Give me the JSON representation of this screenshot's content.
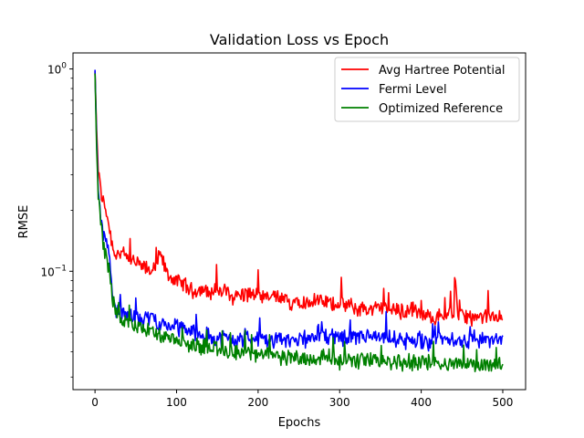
{
  "chart_data": {
    "type": "line",
    "title": "Validation Loss vs Epoch",
    "xlabel": "Epochs",
    "ylabel": "RMSE",
    "y_scale": "log",
    "xlim": [
      -27,
      528
    ],
    "ylim": [
      0.026,
      1.2
    ],
    "grid": false,
    "legend_position": "upper-right",
    "x_ticks": [
      0,
      100,
      200,
      300,
      400,
      500
    ],
    "x_tick_labels": [
      "0",
      "100",
      "200",
      "300",
      "400",
      "500"
    ],
    "y_major_ticks": [
      0.1,
      1.0
    ],
    "y_major_labels": [
      "10",
      "10"
    ],
    "y_major_exponents": [
      "−1",
      "0"
    ],
    "y_minor_ticks": [
      0.03,
      0.04,
      0.05,
      0.06,
      0.07,
      0.08,
      0.09,
      0.2,
      0.3,
      0.4,
      0.5,
      0.6,
      0.7,
      0.8,
      0.9
    ],
    "series": [
      {
        "name": "Avg Hartree Potential",
        "color": "#ff0000",
        "x": [
          0,
          2,
          4,
          7,
          10,
          14,
          18,
          22,
          26,
          30,
          35,
          40,
          50,
          60,
          70,
          80,
          90,
          100,
          110,
          120,
          130,
          140,
          150,
          160,
          170,
          180,
          190,
          200,
          210,
          220,
          230,
          240,
          250,
          260,
          270,
          280,
          290,
          300,
          310,
          320,
          330,
          340,
          350,
          360,
          370,
          380,
          390,
          400,
          410,
          420,
          430,
          440,
          441,
          445,
          450,
          460,
          470,
          480,
          490,
          500
        ],
        "y": [
          0.97,
          0.5,
          0.32,
          0.25,
          0.22,
          0.2,
          0.16,
          0.13,
          0.12,
          0.125,
          0.12,
          0.115,
          0.11,
          0.105,
          0.1,
          0.12,
          0.095,
          0.09,
          0.085,
          0.08,
          0.082,
          0.078,
          0.08,
          0.08,
          0.075,
          0.077,
          0.078,
          0.075,
          0.073,
          0.076,
          0.072,
          0.07,
          0.074,
          0.069,
          0.072,
          0.07,
          0.069,
          0.07,
          0.068,
          0.065,
          0.066,
          0.064,
          0.067,
          0.065,
          0.064,
          0.063,
          0.066,
          0.061,
          0.059,
          0.06,
          0.062,
          0.06,
          0.1,
          0.062,
          0.061,
          0.059,
          0.058,
          0.06,
          0.059,
          0.06
        ]
      },
      {
        "name": "Fermi Level",
        "color": "#0000ff",
        "x": [
          0,
          2,
          4,
          7,
          10,
          14,
          18,
          22,
          26,
          30,
          35,
          40,
          50,
          60,
          70,
          80,
          90,
          100,
          110,
          120,
          130,
          140,
          150,
          160,
          170,
          180,
          190,
          200,
          210,
          220,
          230,
          240,
          250,
          260,
          270,
          280,
          290,
          300,
          310,
          320,
          330,
          340,
          350,
          360,
          370,
          380,
          390,
          400,
          410,
          420,
          430,
          440,
          450,
          460,
          470,
          480,
          490,
          500
        ],
        "y": [
          0.99,
          0.45,
          0.26,
          0.18,
          0.15,
          0.14,
          0.12,
          0.075,
          0.065,
          0.063,
          0.062,
          0.06,
          0.06,
          0.058,
          0.06,
          0.055,
          0.054,
          0.053,
          0.052,
          0.05,
          0.049,
          0.048,
          0.047,
          0.047,
          0.046,
          0.046,
          0.047,
          0.046,
          0.045,
          0.046,
          0.045,
          0.046,
          0.047,
          0.045,
          0.046,
          0.048,
          0.046,
          0.047,
          0.046,
          0.047,
          0.048,
          0.047,
          0.046,
          0.047,
          0.046,
          0.045,
          0.046,
          0.046,
          0.045,
          0.047,
          0.046,
          0.045,
          0.046,
          0.045,
          0.045,
          0.046,
          0.045,
          0.047
        ]
      },
      {
        "name": "Optimized Reference",
        "color": "#008000",
        "x": [
          0,
          2,
          4,
          7,
          10,
          14,
          18,
          22,
          26,
          30,
          35,
          40,
          50,
          60,
          70,
          80,
          90,
          100,
          110,
          120,
          130,
          140,
          150,
          160,
          170,
          180,
          190,
          200,
          210,
          220,
          230,
          240,
          250,
          260,
          270,
          280,
          290,
          300,
          310,
          320,
          330,
          340,
          350,
          360,
          370,
          380,
          390,
          400,
          410,
          420,
          430,
          440,
          450,
          460,
          470,
          480,
          490,
          500
        ],
        "y": [
          0.95,
          0.4,
          0.24,
          0.17,
          0.14,
          0.12,
          0.1,
          0.07,
          0.062,
          0.06,
          0.057,
          0.055,
          0.054,
          0.052,
          0.05,
          0.048,
          0.046,
          0.045,
          0.044,
          0.043,
          0.042,
          0.042,
          0.041,
          0.04,
          0.04,
          0.039,
          0.04,
          0.038,
          0.039,
          0.038,
          0.038,
          0.037,
          0.038,
          0.037,
          0.037,
          0.038,
          0.037,
          0.036,
          0.037,
          0.036,
          0.037,
          0.036,
          0.037,
          0.036,
          0.036,
          0.035,
          0.036,
          0.036,
          0.035,
          0.036,
          0.035,
          0.035,
          0.035,
          0.035,
          0.034,
          0.035,
          0.035,
          0.034
        ]
      }
    ]
  }
}
